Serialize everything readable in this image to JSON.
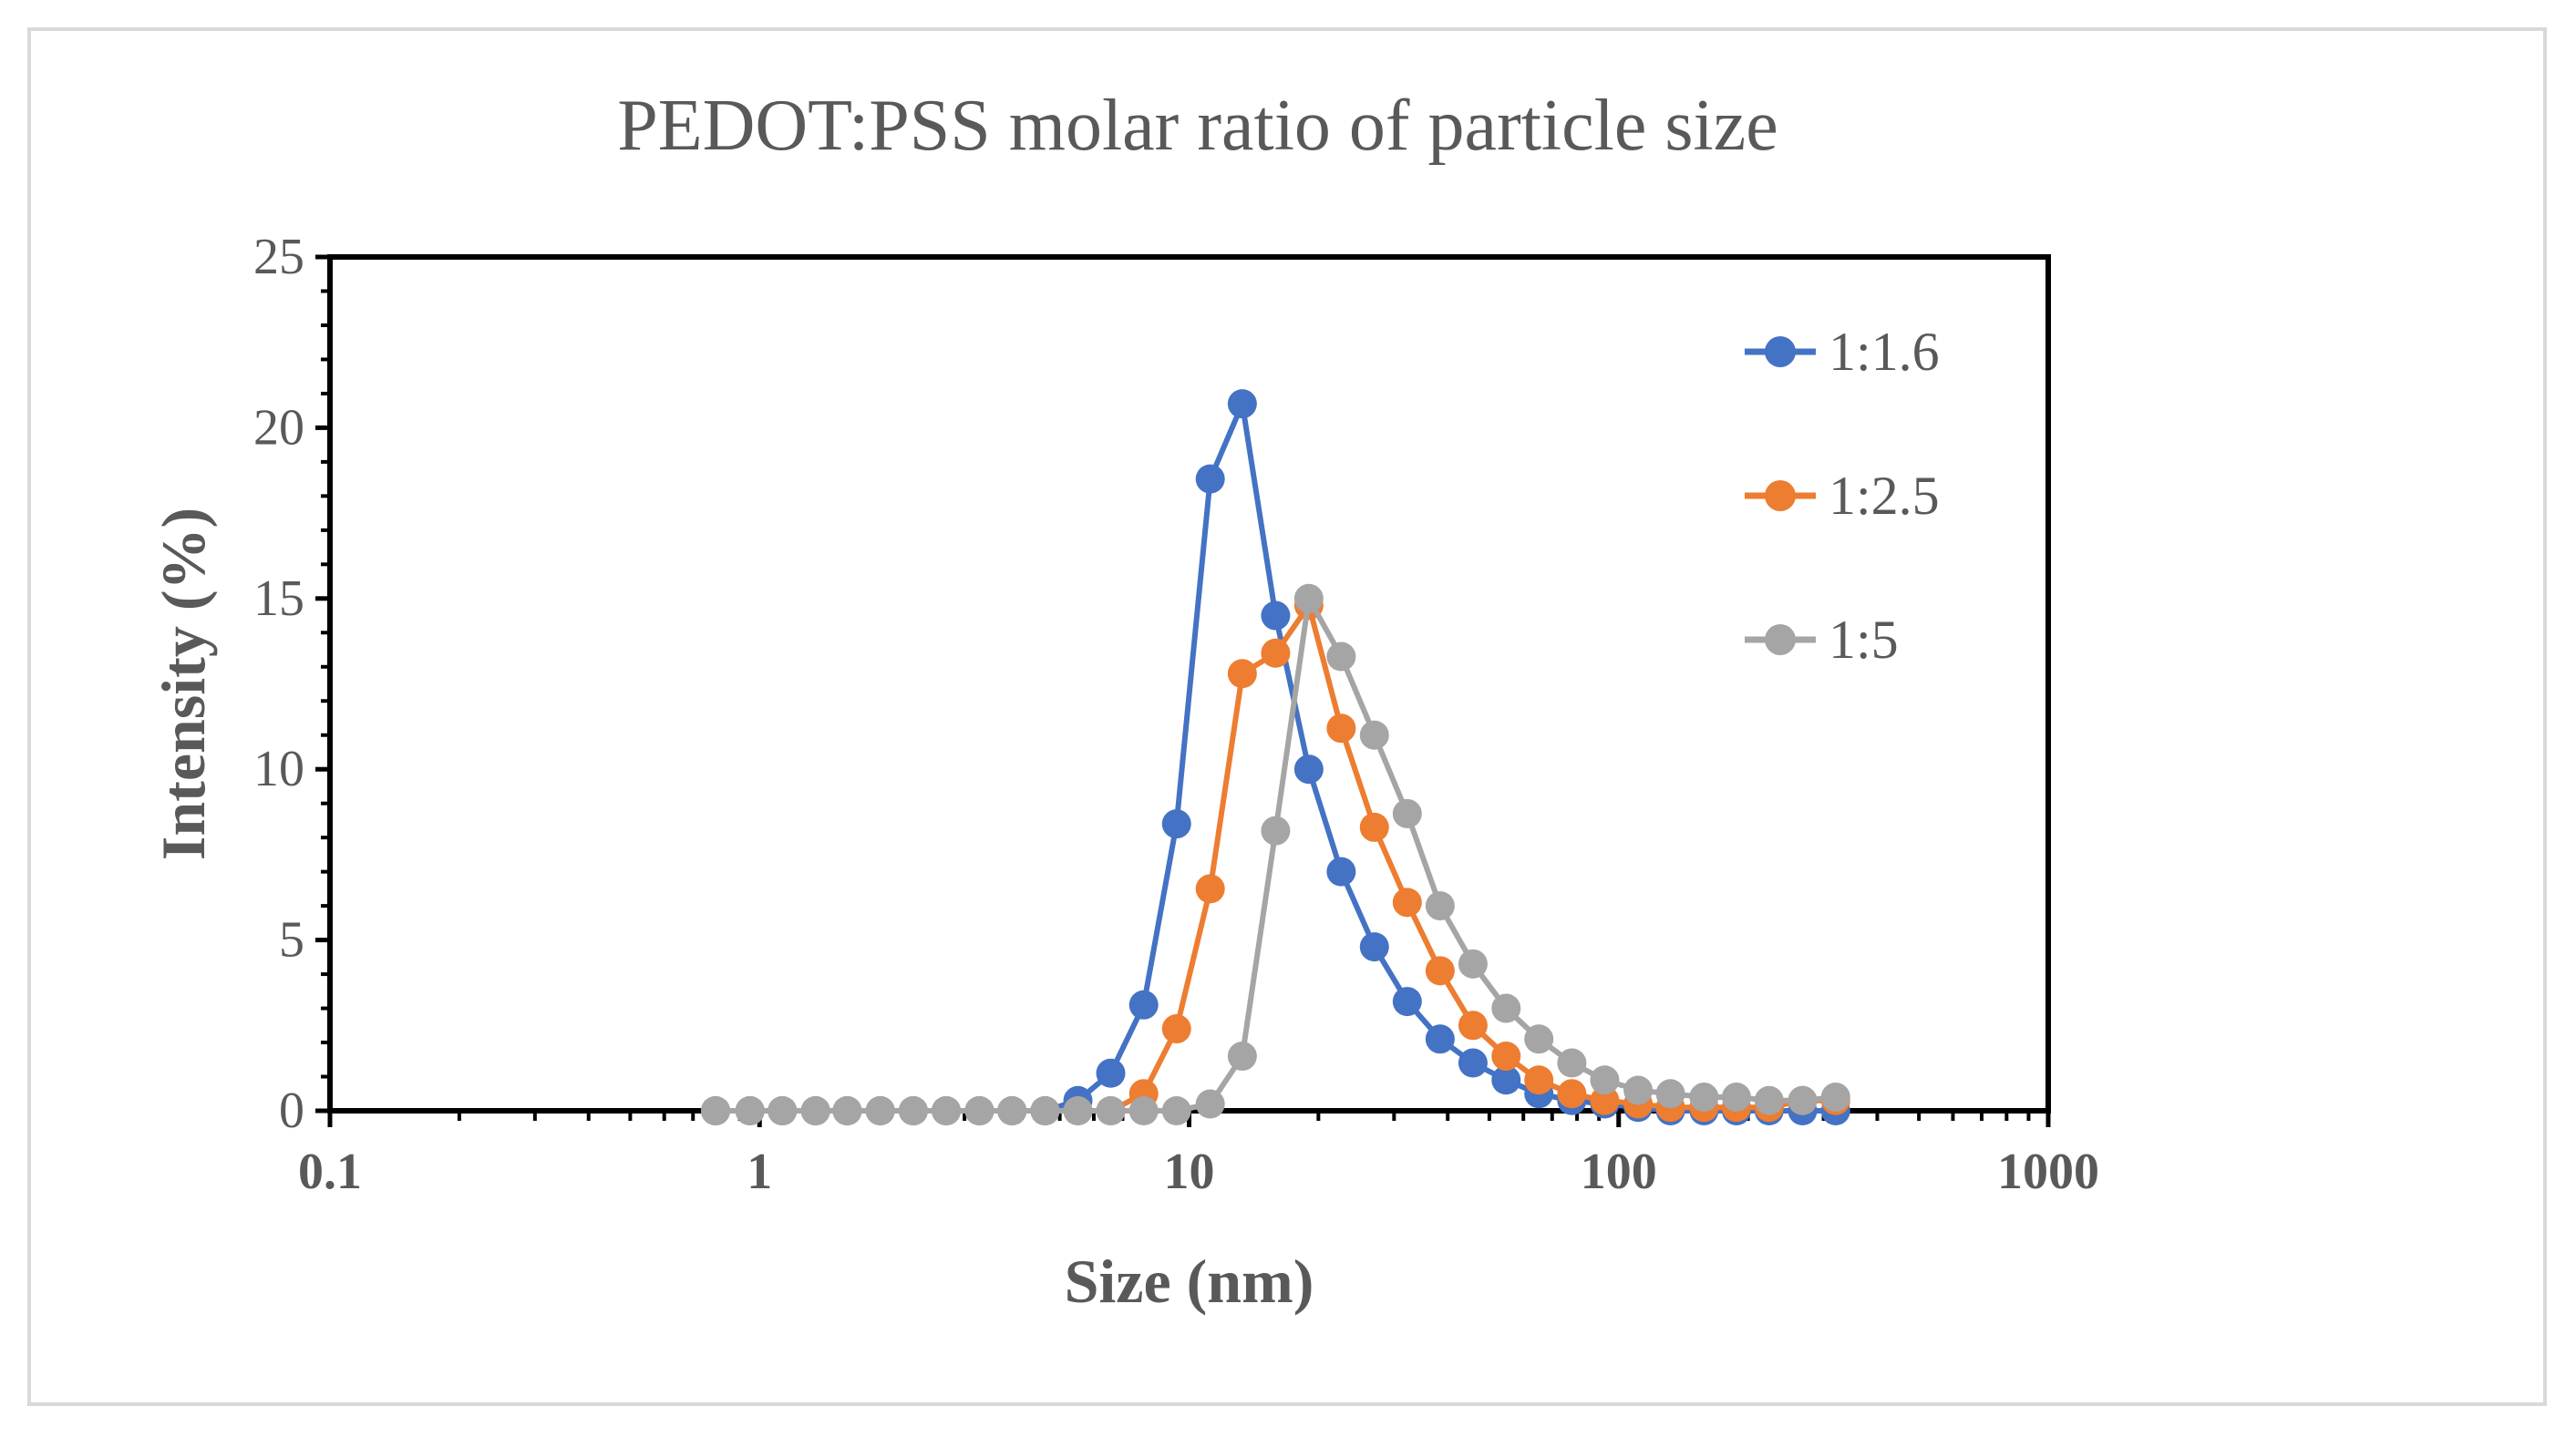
{
  "chart_data": {
    "type": "scatter",
    "title": "PEDOT:PSS molar ratio of particle size",
    "xlabel": "Size (nm)",
    "ylabel": "Intensity (%)",
    "xscale": "log",
    "xlim": [
      0.1,
      1000
    ],
    "ylim": [
      0,
      25
    ],
    "xticks": [
      0.1,
      1,
      10,
      100,
      1000
    ],
    "xtick_labels": [
      "0.1",
      "1",
      "10",
      "100",
      "1000"
    ],
    "yticks": [
      0,
      5,
      10,
      15,
      20,
      25
    ],
    "ytick_labels": [
      "0",
      "5",
      "10",
      "15",
      "20",
      "25"
    ],
    "grid": false,
    "legend_position": "top-right",
    "x": [
      0.79,
      0.95,
      1.13,
      1.35,
      1.6,
      1.91,
      2.28,
      2.72,
      3.25,
      3.87,
      4.62,
      5.51,
      6.57,
      7.84,
      9.35,
      11.2,
      13.3,
      15.9,
      19.0,
      22.6,
      27.0,
      32.2,
      38.4,
      45.8,
      54.7,
      65.2,
      77.8,
      92.8,
      111,
      132,
      158,
      188,
      224,
      268,
      320
    ],
    "series": [
      {
        "name": "1:1.6",
        "color": "#4472C4",
        "values": [
          0,
          0,
          0,
          0,
          0,
          0,
          0,
          0,
          0,
          0,
          0,
          0.3,
          1.1,
          3.1,
          8.4,
          18.5,
          20.7,
          14.5,
          10.0,
          7.0,
          4.8,
          3.2,
          2.1,
          1.4,
          0.9,
          0.5,
          0.3,
          0.2,
          0.1,
          0,
          0,
          0,
          0,
          0,
          0
        ]
      },
      {
        "name": "1:2.5",
        "color": "#ED7D31",
        "values": [
          0,
          0,
          0,
          0,
          0,
          0,
          0,
          0,
          0,
          0,
          0,
          0,
          0,
          0.5,
          2.4,
          6.5,
          12.8,
          13.4,
          14.8,
          11.2,
          8.3,
          6.1,
          4.1,
          2.5,
          1.6,
          0.9,
          0.5,
          0.3,
          0.2,
          0.1,
          0.1,
          0.1,
          0.1,
          0.3,
          0.3
        ]
      },
      {
        "name": "1:5",
        "color": "#A5A5A5",
        "values": [
          0,
          0,
          0,
          0,
          0,
          0,
          0,
          0,
          0,
          0,
          0,
          0,
          0,
          0,
          0,
          0.2,
          1.6,
          8.2,
          15.0,
          13.3,
          11.0,
          8.7,
          6.0,
          4.3,
          3.0,
          2.1,
          1.4,
          0.9,
          0.6,
          0.5,
          0.4,
          0.4,
          0.3,
          0.3,
          0.4
        ]
      }
    ]
  }
}
